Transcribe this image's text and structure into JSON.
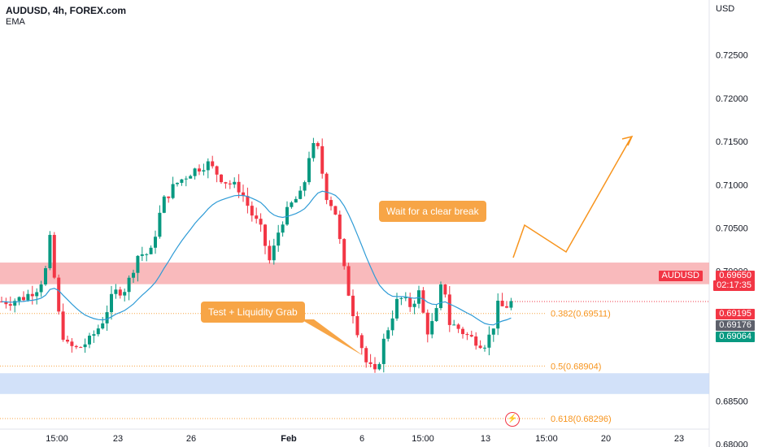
{
  "header": {
    "title": "AUDUSD, 4h, FOREX.com",
    "indicator": "EMA"
  },
  "axis": {
    "unit": "USD"
  },
  "chart_data": {
    "type": "candlestick",
    "symbol": "AUDUSD",
    "timeframe": "4h",
    "ylim": [
      0.68,
      0.7265
    ],
    "y_ticks": [
      0.725,
      0.72,
      0.715,
      0.71,
      0.705,
      0.7,
      0.695,
      0.69,
      0.685,
      0.68
    ],
    "y_tick_labels": [
      "0.72500",
      "0.72000",
      "0.71500",
      "0.71000",
      "0.70500",
      "0.70000",
      "",
      "",
      "0.68500",
      "0.68000"
    ],
    "x_tick_labels": [
      "15:00",
      "23",
      "26",
      "Feb",
      "6",
      "15:00",
      "13",
      "15:00",
      "20",
      "23"
    ],
    "zones": [
      {
        "name": "resistance",
        "from": 0.6985,
        "to": 0.701,
        "color": "#f7a9ab"
      },
      {
        "name": "support",
        "from": 0.6858,
        "to": 0.6882,
        "color": "#c7d9f7"
      }
    ],
    "fib_levels": [
      {
        "label": "0.382(0.69511)",
        "value": 0.69511
      },
      {
        "label": "0.5(0.68904)",
        "value": 0.68904
      },
      {
        "label": "0.618(0.68296)",
        "value": 0.68296
      }
    ],
    "price_markers": [
      {
        "label": "AUDUSD",
        "value": "0.69650",
        "sub": "02:17:35",
        "color": "#f23645"
      },
      {
        "label": "",
        "value": "0.69195",
        "color": "#f23645"
      },
      {
        "label": "",
        "value": "0.69176",
        "color": "#5d606b"
      },
      {
        "label": "",
        "value": "0.69064",
        "color": "#089981"
      }
    ],
    "annotations": [
      {
        "text": "Wait for a clear break"
      },
      {
        "text": "Test + Liquidity Grab"
      }
    ],
    "colors": {
      "up": "#089981",
      "down": "#f23645",
      "ema": "#2e9bd6",
      "projection": "#f7941d"
    }
  }
}
